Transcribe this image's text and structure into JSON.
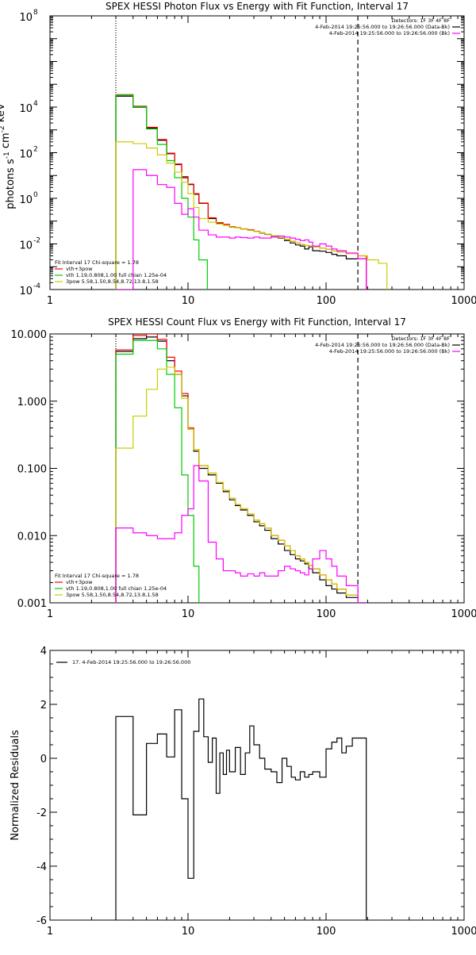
{
  "chart_data": [
    {
      "type": "line",
      "title": "SPEX HESSI Photon Flux vs Energy with Fit Function, Interval 17",
      "xlabel": "",
      "ylabel": "photons s^-1 cm^-2 keV^-1",
      "xscale": "log",
      "yscale": "log",
      "xlim": [
        1,
        1000
      ],
      "ylim": [
        0.0001,
        100000000
      ],
      "x_ticks": [
        {
          "v": 1,
          "label": "1"
        },
        {
          "v": 10,
          "label": "10"
        },
        {
          "v": 100,
          "label": "100"
        },
        {
          "v": 1000,
          "label": "1000"
        }
      ],
      "y_ticks": [
        {
          "v": 0.0001,
          "base": "10",
          "exp": "-4"
        },
        {
          "v": 0.01,
          "base": "10",
          "exp": "-2"
        },
        {
          "v": 1,
          "base": "10",
          "exp": "0"
        },
        {
          "v": 100,
          "base": "10",
          "exp": "2"
        },
        {
          "v": 10000,
          "base": "10",
          "exp": "4"
        },
        {
          "v": 100000000,
          "base": "10",
          "exp": "8"
        }
      ],
      "vlines": [
        {
          "x": 3,
          "style": "dotted"
        },
        {
          "x": 170,
          "style": "dashed"
        }
      ],
      "legend_top_right": [
        {
          "text": "Detectors: 1F 3F 4F 8F",
          "color": ""
        },
        {
          "text": "4-Feb-2014 19:25:56.000 to 19:26:56.000 (Data-Bk)",
          "color": "#000000"
        },
        {
          "text": "4-Feb-2014 19:25:56.000 to 19:26:56.000 (Bk)",
          "color": "#ff00ff"
        }
      ],
      "legend_bottom_left": [
        {
          "text": "Fit Interval 17   Chi-square = 1.78",
          "color": ""
        },
        {
          "text": "vth+3pow",
          "color": "#ff0000"
        },
        {
          "text": "vth 1.19,0.808,1.00  full chian 1.25e-04",
          "color": "#00cc00"
        },
        {
          "text": "3pow 5.58,1.50,8.54,8.72,13.8,1.58",
          "color": "#cccc00"
        }
      ],
      "series": [
        {
          "name": "Data-Bk",
          "color": "#000000",
          "x": [
            3,
            4,
            5,
            6,
            7,
            8,
            9,
            10,
            11,
            12,
            14,
            16,
            18,
            20,
            22,
            24,
            27,
            30,
            33,
            36,
            40,
            45,
            50,
            55,
            60,
            65,
            70,
            75,
            80,
            90,
            100,
            110,
            120,
            140,
            170
          ],
          "y": [
            30000,
            10000,
            1200,
            350,
            90,
            30,
            8,
            4,
            1.5,
            0.6,
            0.13,
            0.08,
            0.07,
            0.055,
            0.05,
            0.045,
            0.04,
            0.035,
            0.03,
            0.026,
            0.022,
            0.018,
            0.014,
            0.011,
            0.009,
            0.008,
            0.006,
            0.0075,
            0.005,
            0.0048,
            0.0042,
            0.0035,
            0.003,
            0.0022,
            0.0022
          ]
        },
        {
          "name": "vth+3pow",
          "color": "#ff0000",
          "x": [
            3,
            4,
            5,
            6,
            7,
            8,
            9,
            10,
            11,
            12,
            14,
            16,
            18,
            20,
            22,
            24,
            27,
            30,
            33,
            36,
            40,
            45,
            50,
            55,
            60,
            65,
            70,
            75,
            80,
            90,
            100,
            110,
            120,
            140,
            170
          ],
          "y": [
            35000,
            11000,
            1300,
            380,
            95,
            32,
            9,
            4.2,
            1.6,
            0.62,
            0.14,
            0.085,
            0.072,
            0.058,
            0.052,
            0.046,
            0.042,
            0.036,
            0.031,
            0.027,
            0.023,
            0.019,
            0.016,
            0.013,
            0.011,
            0.0095,
            0.0085,
            0.008,
            0.0075,
            0.0065,
            0.0058,
            0.005,
            0.0045,
            0.0038,
            0.003
          ]
        },
        {
          "name": "vth",
          "color": "#00cc00",
          "x": [
            3,
            4,
            5,
            6,
            7,
            8,
            9,
            10,
            11,
            12
          ],
          "y": [
            34000,
            10500,
            1100,
            230,
            45,
            8,
            1,
            0.15,
            0.015,
            0.002
          ]
        },
        {
          "name": "3pow",
          "color": "#cccc00",
          "x": [
            3,
            4,
            5,
            6,
            7,
            8,
            9,
            10,
            11,
            12,
            14,
            16,
            18,
            20,
            22,
            24,
            27,
            30,
            33,
            36,
            40,
            45,
            50,
            55,
            60,
            65,
            70,
            75,
            80,
            90,
            100,
            110,
            120,
            140,
            170,
            200,
            240
          ],
          "y": [
            300,
            250,
            160,
            80,
            35,
            14,
            5,
            1.6,
            0.4,
            0.13,
            0.09,
            0.075,
            0.065,
            0.056,
            0.05,
            0.045,
            0.04,
            0.035,
            0.031,
            0.027,
            0.023,
            0.019,
            0.016,
            0.013,
            0.011,
            0.0095,
            0.0085,
            0.008,
            0.0075,
            0.0065,
            0.0058,
            0.005,
            0.0045,
            0.0038,
            0.003,
            0.002,
            0.0014
          ]
        },
        {
          "name": "Bk",
          "color": "#ff00ff",
          "x": [
            3,
            4,
            5,
            6,
            7,
            8,
            9,
            10,
            11,
            12,
            14,
            16,
            18,
            20,
            22,
            24,
            27,
            30,
            33,
            36,
            40,
            45,
            50,
            55,
            60,
            65,
            70,
            75,
            80,
            90,
            100,
            110,
            120,
            140,
            170
          ],
          "y": [
            0.0001,
            18,
            10,
            4,
            3,
            0.6,
            0.2,
            0.35,
            0.15,
            0.04,
            0.025,
            0.02,
            0.02,
            0.018,
            0.02,
            0.019,
            0.018,
            0.02,
            0.018,
            0.018,
            0.02,
            0.022,
            0.02,
            0.018,
            0.016,
            0.014,
            0.015,
            0.012,
            0.008,
            0.01,
            0.008,
            0.006,
            0.005,
            0.004,
            0.0022
          ]
        }
      ]
    },
    {
      "type": "line",
      "title": "SPEX HESSI Count Flux vs Energy with Fit Function, Interval 17",
      "xlabel": "",
      "ylabel": "",
      "xscale": "log",
      "yscale": "log",
      "xlim": [
        1,
        1000
      ],
      "ylim": [
        0.001,
        10
      ],
      "x_ticks": [
        {
          "v": 1,
          "label": "1"
        },
        {
          "v": 10,
          "label": "10"
        },
        {
          "v": 100,
          "label": "100"
        },
        {
          "v": 1000,
          "label": "1000"
        }
      ],
      "y_ticks": [
        {
          "v": 0.001,
          "label": "0.001"
        },
        {
          "v": 0.01,
          "label": "0.010"
        },
        {
          "v": 0.1,
          "label": "0.100"
        },
        {
          "v": 1,
          "label": "1.000"
        },
        {
          "v": 10,
          "label": "10.000"
        }
      ],
      "vlines": [
        {
          "x": 3,
          "style": "dotted"
        },
        {
          "x": 170,
          "style": "dashed"
        }
      ],
      "legend_top_right": [
        {
          "text": "Detectors: 1F 3F 4F 8F",
          "color": ""
        },
        {
          "text": "4-Feb-2014 19:25:56.000 to 19:26:56.000 (Data-Bk)",
          "color": "#000000"
        },
        {
          "text": "4-Feb-2014 19:25:56.000 to 19:26:56.000 (Bk)",
          "color": "#ff00ff"
        }
      ],
      "legend_bottom_left": [
        {
          "text": "Fit Interval 17   Chi-square = 1.78",
          "color": ""
        },
        {
          "text": "vth+3pow",
          "color": "#ff0000"
        },
        {
          "text": "vth 1.19,0.808,1.00  full chian 1.25e-04",
          "color": "#00cc00"
        },
        {
          "text": "3pow 5.58,1.50,8.54,8.72,13.8,1.58",
          "color": "#cccc00"
        }
      ],
      "series": [
        {
          "name": "Data-Bk",
          "color": "#000000",
          "x": [
            3,
            4,
            5,
            6,
            7,
            8,
            9,
            10,
            11,
            12,
            14,
            16,
            18,
            20,
            22,
            24,
            27,
            30,
            33,
            36,
            40,
            45,
            50,
            55,
            60,
            65,
            70,
            75,
            80,
            90,
            100,
            110,
            120,
            140,
            170
          ],
          "y": [
            5.5,
            8.5,
            9,
            7.8,
            4,
            2.5,
            1.2,
            0.38,
            0.18,
            0.1,
            0.08,
            0.06,
            0.045,
            0.034,
            0.028,
            0.024,
            0.02,
            0.016,
            0.014,
            0.012,
            0.009,
            0.0075,
            0.006,
            0.0052,
            0.0045,
            0.0042,
            0.0038,
            0.0032,
            0.0028,
            0.0022,
            0.0018,
            0.0016,
            0.0014,
            0.0012,
            0.001
          ]
        },
        {
          "name": "vth+3pow",
          "color": "#ff0000",
          "x": [
            3,
            4,
            5,
            6,
            7,
            8,
            9,
            10,
            11,
            12,
            14,
            16,
            18,
            20,
            22,
            24,
            27,
            30,
            33,
            36,
            40,
            45,
            50,
            55,
            60,
            65,
            70,
            75,
            80,
            90,
            100,
            110,
            120,
            140,
            170
          ],
          "y": [
            5.8,
            9.5,
            10,
            8.3,
            4.5,
            2.8,
            1.3,
            0.4,
            0.19,
            0.11,
            0.085,
            0.062,
            0.047,
            0.036,
            0.029,
            0.025,
            0.021,
            0.017,
            0.015,
            0.013,
            0.01,
            0.0085,
            0.007,
            0.006,
            0.005,
            0.0045,
            0.004,
            0.0036,
            0.0032,
            0.0026,
            0.0022,
            0.0019,
            0.0016,
            0.0013,
            0.001
          ]
        },
        {
          "name": "vth",
          "color": "#00cc00",
          "x": [
            3,
            4,
            5,
            6,
            7,
            8,
            9,
            10,
            11,
            12
          ],
          "y": [
            5,
            8,
            8,
            6,
            2.5,
            0.8,
            0.08,
            0.02,
            0.0035,
            0.0008
          ]
        },
        {
          "name": "3pow",
          "color": "#cccc00",
          "x": [
            3,
            4,
            5,
            6,
            7,
            8,
            9,
            10,
            11,
            12,
            14,
            16,
            18,
            20,
            22,
            24,
            27,
            30,
            33,
            36,
            40,
            45,
            50,
            55,
            60,
            65,
            70,
            75,
            80,
            90,
            100,
            110,
            120,
            140,
            170
          ],
          "y": [
            0.2,
            0.6,
            1.5,
            3,
            3.2,
            2.5,
            1.1,
            0.38,
            0.19,
            0.11,
            0.085,
            0.062,
            0.047,
            0.036,
            0.029,
            0.025,
            0.021,
            0.017,
            0.015,
            0.013,
            0.01,
            0.0085,
            0.007,
            0.006,
            0.005,
            0.0045,
            0.004,
            0.0036,
            0.0032,
            0.0026,
            0.0022,
            0.0019,
            0.0016,
            0.0013,
            0.001
          ]
        },
        {
          "name": "Bk",
          "color": "#ff00ff",
          "x": [
            3,
            4,
            5,
            6,
            7,
            8,
            9,
            10,
            11,
            12,
            14,
            16,
            18,
            20,
            22,
            24,
            27,
            30,
            33,
            36,
            40,
            45,
            50,
            55,
            60,
            65,
            70,
            75,
            80,
            90,
            100,
            110,
            120,
            140,
            170
          ],
          "y": [
            0.013,
            0.011,
            0.01,
            0.009,
            0.009,
            0.011,
            0.02,
            0.025,
            0.11,
            0.065,
            0.008,
            0.0045,
            0.003,
            0.003,
            0.0028,
            0.0025,
            0.0027,
            0.0025,
            0.0028,
            0.0025,
            0.0025,
            0.003,
            0.0035,
            0.0032,
            0.003,
            0.0028,
            0.0026,
            0.0032,
            0.0045,
            0.006,
            0.0045,
            0.0035,
            0.0025,
            0.0018,
            0.001
          ]
        }
      ]
    },
    {
      "type": "line",
      "title": "",
      "xlabel": "",
      "ylabel": "Normalized Residuals",
      "xscale": "log",
      "yscale": "linear",
      "xlim": [
        1,
        1000
      ],
      "ylim": [
        -6,
        4
      ],
      "x_ticks": [
        {
          "v": 1,
          "label": "1"
        },
        {
          "v": 10,
          "label": "10"
        },
        {
          "v": 100,
          "label": "100"
        },
        {
          "v": 1000,
          "label": "1000"
        }
      ],
      "y_ticks": [
        {
          "v": -6,
          "label": "-6"
        },
        {
          "v": -4,
          "label": "-4"
        },
        {
          "v": -2,
          "label": "-2"
        },
        {
          "v": 0,
          "label": "0"
        },
        {
          "v": 2,
          "label": "2"
        },
        {
          "v": 4,
          "label": "4"
        }
      ],
      "legend_top_left": [
        {
          "text": "17.  4-Feb-2014 19:25:56.000 to 19:26:56.000",
          "color": "#000000"
        }
      ],
      "series": [
        {
          "name": "17.  4-Feb-2014 19:25:56.000 to 19:26:56.000",
          "color": "#000000",
          "x": [
            3,
            4,
            5,
            6,
            7,
            8,
            9,
            10,
            11,
            12,
            13,
            14,
            15,
            16,
            17,
            18,
            19,
            20,
            22,
            24,
            26,
            28,
            30,
            33,
            36,
            40,
            44,
            48,
            52,
            56,
            60,
            65,
            70,
            75,
            80,
            90,
            100,
            110,
            120,
            130,
            140,
            155,
            170
          ],
          "y": [
            1.55,
            -2.1,
            0.55,
            0.9,
            0.05,
            1.8,
            -1.5,
            -4.45,
            1.0,
            2.2,
            0.8,
            -0.15,
            0.75,
            -1.3,
            0.2,
            -0.6,
            0.3,
            -0.5,
            0.4,
            -0.6,
            0.2,
            1.2,
            0.5,
            0.0,
            -0.4,
            -0.5,
            -0.9,
            0.0,
            -0.3,
            -0.7,
            -0.8,
            -0.5,
            -0.7,
            -0.6,
            -0.5,
            -0.7,
            0.35,
            0.6,
            0.75,
            0.2,
            0.45,
            0.75,
            0.75
          ]
        }
      ]
    }
  ]
}
